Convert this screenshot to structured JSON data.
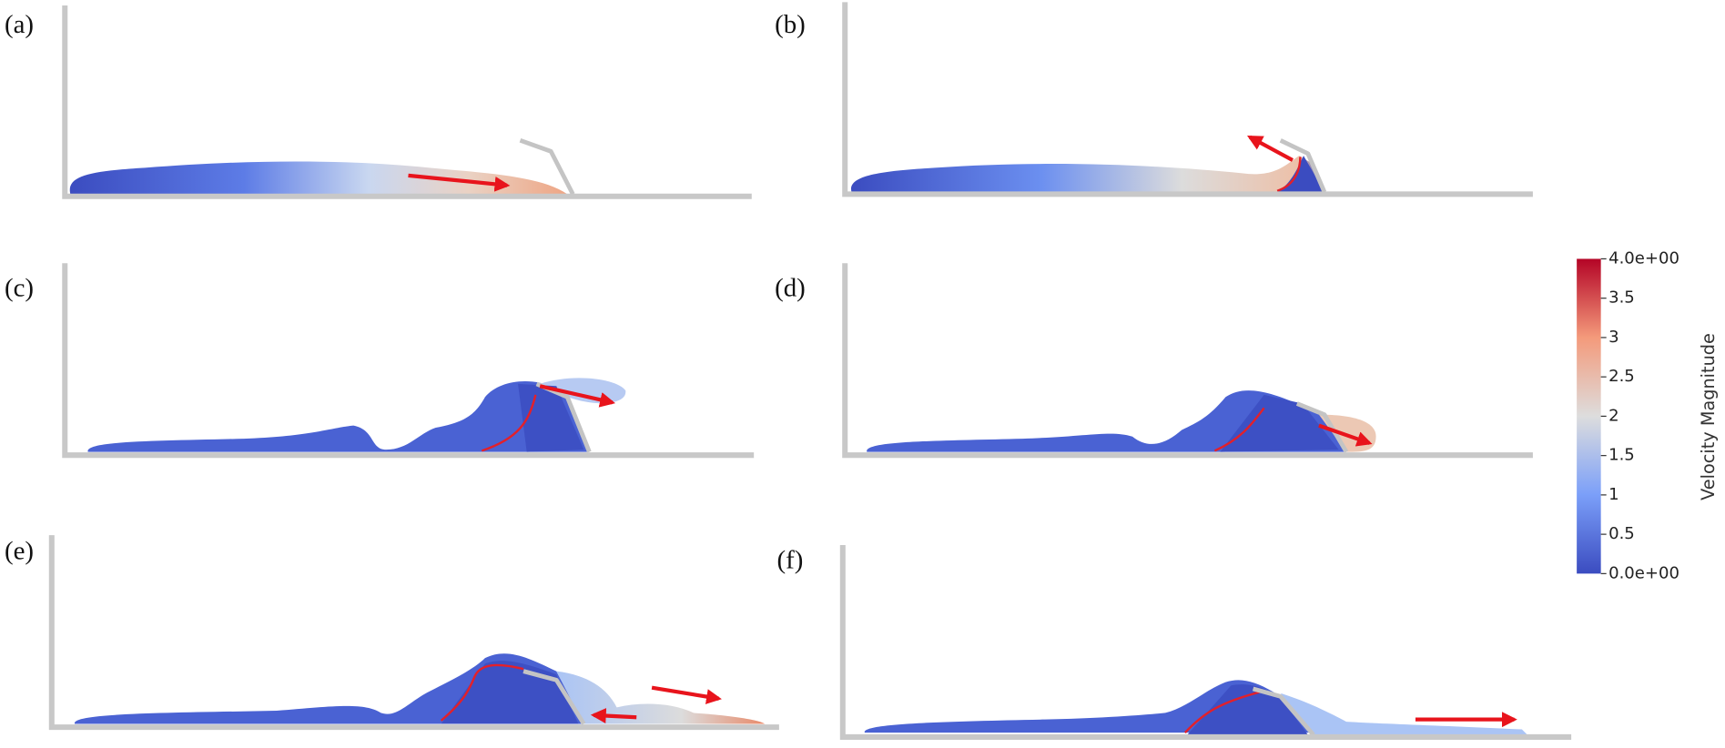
{
  "panels": [
    {
      "label": "(a)"
    },
    {
      "label": "(b)"
    },
    {
      "label": "(c)"
    },
    {
      "label": "(d)"
    },
    {
      "label": "(e)"
    },
    {
      "label": "(f)"
    }
  ],
  "colorbar": {
    "title": "Velocity Magnitude",
    "lim": [
      0,
      4
    ],
    "ticks": [
      {
        "value": 0,
        "label": "0.0e+00"
      },
      0.5,
      1,
      1.5,
      2,
      2.5,
      3,
      3.5,
      {
        "value": 4,
        "label": "4.0e+00"
      }
    ]
  }
}
